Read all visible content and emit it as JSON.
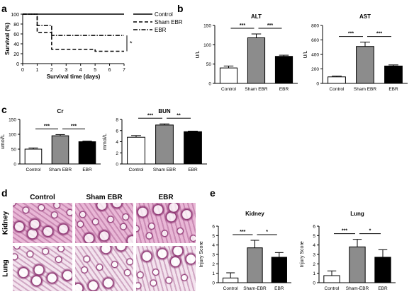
{
  "panel_letters": {
    "a": "a",
    "b": "b",
    "c": "c",
    "d": "d",
    "e": "e"
  },
  "colors": {
    "control": "#ffffff",
    "sham": "#8c8c8c",
    "ebr": "#000000",
    "stain_dark": "#8a2f6e",
    "stain_light": "#e9b7d6"
  },
  "micrographs": {
    "columns": [
      "Control",
      "Sham EBR",
      "EBR"
    ],
    "rows": [
      "Kidney",
      "Lung"
    ]
  },
  "chart_data": [
    {
      "id": "survival",
      "type": "line",
      "title": "",
      "xlabel": "Survival time (days)",
      "ylabel": "Survival (%)",
      "xlim": [
        0,
        7
      ],
      "ylim": [
        0,
        100
      ],
      "xticks": [
        "0",
        "1",
        "2",
        "3",
        "4",
        "5",
        "6",
        "7"
      ],
      "yticks": [
        "0",
        "20",
        "40",
        "60",
        "80",
        "100"
      ],
      "series": [
        {
          "name": "Control",
          "style": "solid",
          "x": [
            0,
            7
          ],
          "y": [
            100,
            100
          ]
        },
        {
          "name": "Sham EBR",
          "style": "dashed",
          "x": [
            0,
            1,
            1,
            2,
            2,
            5,
            5,
            7
          ],
          "y": [
            100,
            100,
            63,
            63,
            29,
            29,
            25,
            25
          ]
        },
        {
          "name": "EBR",
          "style": "dashdot",
          "x": [
            0,
            1,
            1,
            2,
            2,
            7
          ],
          "y": [
            100,
            100,
            77,
            77,
            57,
            57
          ]
        }
      ],
      "significance": "*"
    },
    {
      "id": "alt",
      "type": "bar",
      "title": "ALT",
      "xlabel": "",
      "ylabel": "U/L",
      "categories": [
        "Control",
        "Sham EBR",
        "EBR"
      ],
      "values": [
        40,
        118,
        70
      ],
      "errors": [
        5,
        10,
        3
      ],
      "ylim": [
        0,
        150
      ],
      "yticks": [
        "0",
        "50",
        "100",
        "150"
      ],
      "sig": [
        {
          "from": 0,
          "to": 1,
          "label": "***"
        },
        {
          "from": 1,
          "to": 2,
          "label": "***"
        }
      ]
    },
    {
      "id": "ast",
      "type": "bar",
      "title": "AST",
      "xlabel": "",
      "ylabel": "U/L",
      "categories": [
        "Control",
        "Sham EBR",
        "EBR"
      ],
      "values": [
        90,
        510,
        240
      ],
      "errors": [
        10,
        60,
        15
      ],
      "ylim": [
        0,
        800
      ],
      "yticks": [
        "0",
        "200",
        "400",
        "600",
        "800"
      ],
      "sig": [
        {
          "from": 0,
          "to": 1,
          "label": "***"
        },
        {
          "from": 1,
          "to": 2,
          "label": "***"
        }
      ]
    },
    {
      "id": "cr",
      "type": "bar",
      "title": "Cr",
      "xlabel": "",
      "ylabel": "umol/L",
      "categories": [
        "Control",
        "Sham EBR",
        "EBR"
      ],
      "values": [
        50,
        95,
        75
      ],
      "errors": [
        4,
        4,
        2
      ],
      "ylim": [
        0,
        150
      ],
      "yticks": [
        "0",
        "50",
        "100",
        "150"
      ],
      "sig": [
        {
          "from": 0,
          "to": 1,
          "label": "***"
        },
        {
          "from": 1,
          "to": 2,
          "label": "***"
        }
      ]
    },
    {
      "id": "bun",
      "type": "bar",
      "title": "BUN",
      "xlabel": "",
      "ylabel": "mmol/L",
      "categories": [
        "Control",
        "Sham EBR",
        "EBR"
      ],
      "values": [
        4.8,
        7.0,
        5.8
      ],
      "errors": [
        0.3,
        0.2,
        0.1
      ],
      "ylim": [
        0,
        8
      ],
      "yticks": [
        "0",
        "2",
        "4",
        "6",
        "8"
      ],
      "sig": [
        {
          "from": 0,
          "to": 1,
          "label": "***"
        },
        {
          "from": 1,
          "to": 2,
          "label": "**"
        }
      ]
    },
    {
      "id": "kidney",
      "type": "bar",
      "title": "Kidney",
      "xlabel": "",
      "ylabel": "Injury Score",
      "categories": [
        "Control",
        "Sham-EBR",
        "EBR"
      ],
      "values": [
        0.5,
        3.7,
        2.7
      ],
      "errors": [
        0.55,
        0.8,
        0.5
      ],
      "ylim": [
        0,
        6
      ],
      "yticks": [
        "0",
        "1",
        "2",
        "3",
        "4",
        "5",
        "6"
      ],
      "sig": [
        {
          "from": 0,
          "to": 1,
          "label": "***"
        },
        {
          "from": 1,
          "to": 2,
          "label": "*"
        }
      ]
    },
    {
      "id": "lung",
      "type": "bar",
      "title": "Lung",
      "xlabel": "",
      "ylabel": "Injury Score",
      "categories": [
        "Control",
        "Sham-EBR",
        "EBR"
      ],
      "values": [
        0.75,
        3.8,
        2.7
      ],
      "errors": [
        0.5,
        0.8,
        0.8
      ],
      "ylim": [
        0,
        6
      ],
      "yticks": [
        "0",
        "1",
        "2",
        "3",
        "4",
        "5",
        "6"
      ],
      "sig": [
        {
          "from": 0,
          "to": 1,
          "label": "***"
        },
        {
          "from": 1,
          "to": 2,
          "label": "*"
        }
      ]
    }
  ]
}
